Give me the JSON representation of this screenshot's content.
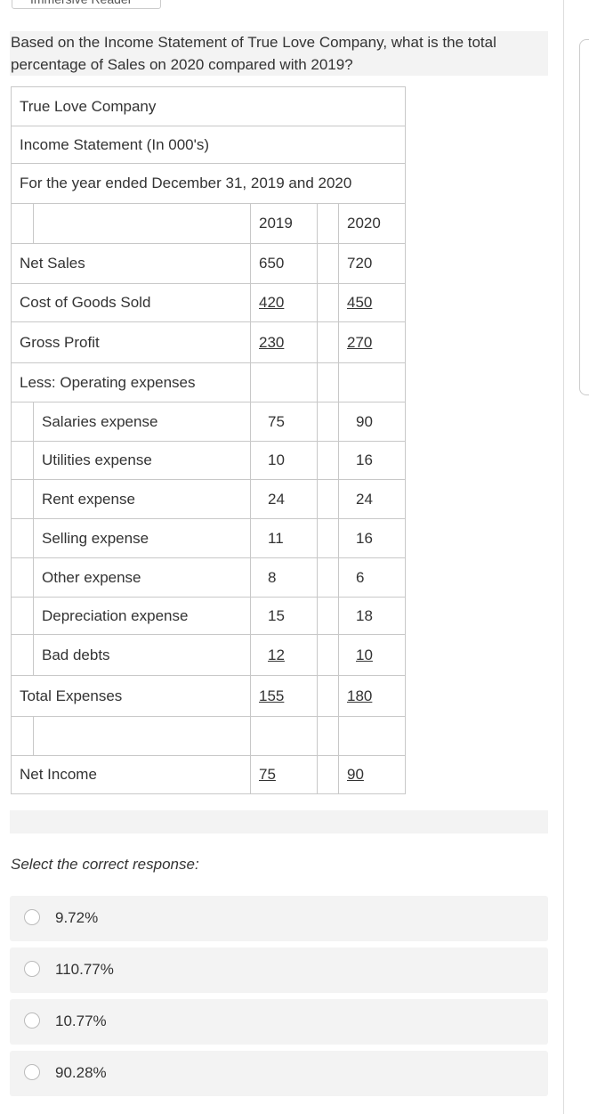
{
  "toolbar": {
    "button": "Immersive Reader"
  },
  "question": "Based on the Income Statement of True Love Company, what is the total percentage of Sales on 2020 compared with 2019?",
  "table": {
    "title_rows": [
      "True Love Company",
      "Income Statement (In 000's)",
      "For the year ended December 31, 2019 and 2020"
    ],
    "columns": [
      "2019",
      "2020"
    ],
    "rows": [
      {
        "label": "Net Sales",
        "values": [
          650,
          720
        ]
      },
      {
        "label": "Cost of Goods Sold",
        "values": [
          420,
          450
        ],
        "underline": true
      },
      {
        "label": "Gross Profit",
        "values": [
          230,
          270
        ],
        "underline": true
      },
      {
        "label": "Less: Operating expenses"
      },
      {
        "label": "Salaries expense",
        "values": [
          75,
          90
        ],
        "indent": true
      },
      {
        "label": "Utilities expense",
        "values": [
          10,
          16
        ],
        "indent": true
      },
      {
        "label": "Rent expense",
        "values": [
          24,
          24
        ],
        "indent": true
      },
      {
        "label": "Selling expense",
        "values": [
          11,
          16
        ],
        "indent": true
      },
      {
        "label": "Other expense",
        "values": [
          8,
          6
        ],
        "indent": true
      },
      {
        "label": "Depreciation expense",
        "values": [
          15,
          18
        ],
        "indent": true
      },
      {
        "label": "Bad debts",
        "values": [
          12,
          10
        ],
        "indent": true,
        "underline": true
      },
      {
        "label": "Total Expenses",
        "values": [
          155,
          180
        ],
        "underline": true
      },
      {
        "indent": true
      },
      {
        "label": "Net Income",
        "values": [
          75,
          90
        ],
        "underline": true
      }
    ]
  },
  "prompt": "Select the correct response:",
  "options": [
    "9.72%",
    "110.77%",
    "10.77%",
    "90.28%"
  ]
}
